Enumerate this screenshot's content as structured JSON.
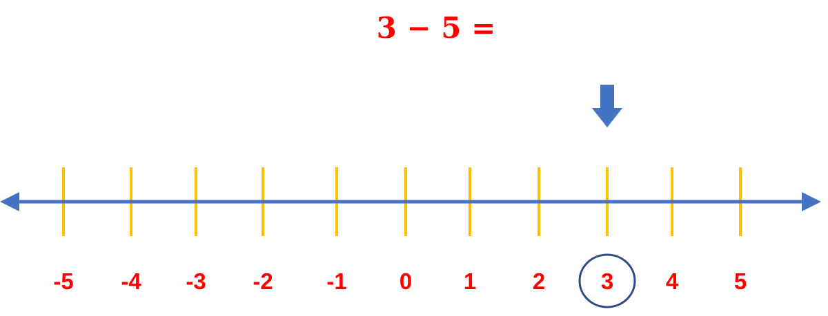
{
  "equation": {
    "text": "3 − 5 ="
  },
  "number_line": {
    "ticks": [
      -5,
      -4,
      -3,
      -2,
      -1,
      0,
      1,
      2,
      3,
      4,
      5
    ],
    "tick_labels": [
      "-5",
      "-4",
      "-3",
      "-2",
      "-1",
      "0",
      "1",
      "2",
      "3",
      "4",
      "5"
    ],
    "start_value": 3,
    "marker_icon": "down-arrow-icon",
    "highlight_shape": "circle"
  },
  "colors": {
    "text": "#ff0000",
    "axis": "#4472c4",
    "ticks": "#ffc000",
    "marker": "#4472c4",
    "circle": "#2f4a8a"
  }
}
